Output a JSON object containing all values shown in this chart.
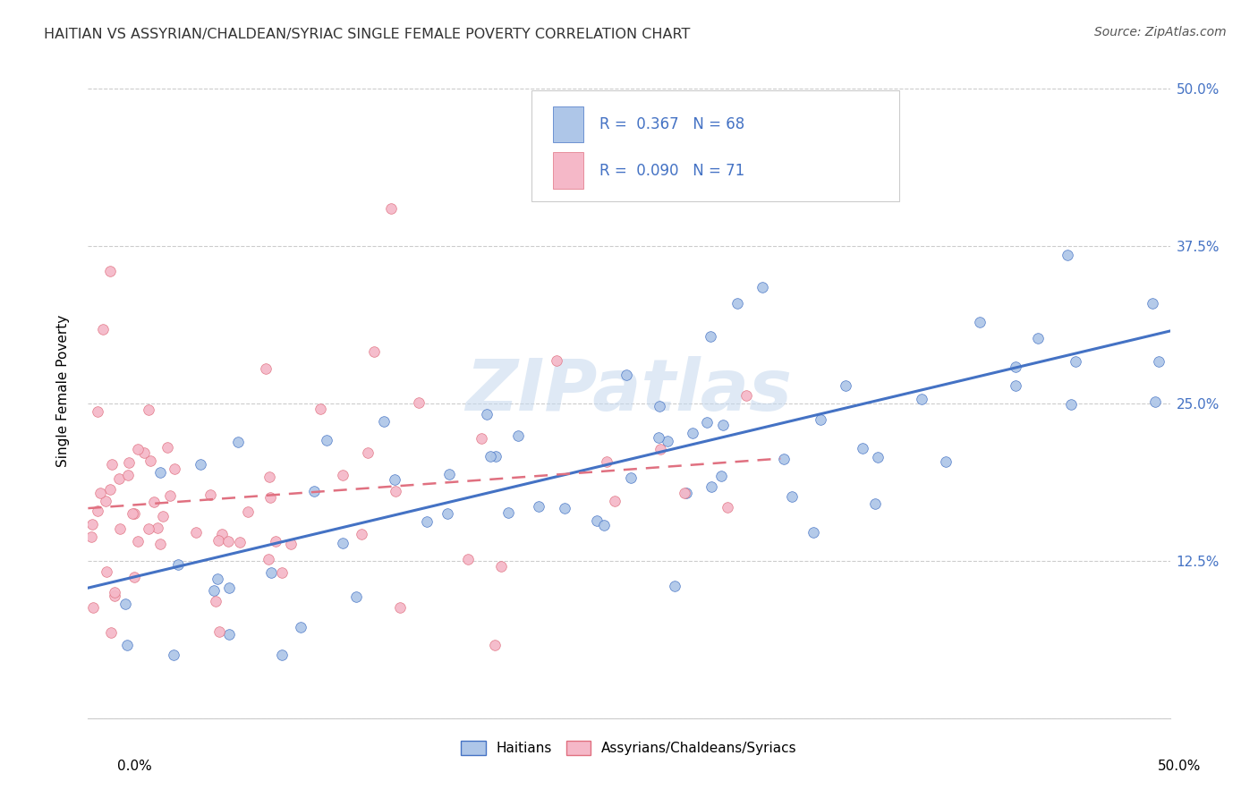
{
  "title": "HAITIAN VS ASSYRIAN/CHALDEAN/SYRIAC SINGLE FEMALE POVERTY CORRELATION CHART",
  "source": "Source: ZipAtlas.com",
  "ylabel": "Single Female Poverty",
  "legend_label1": "Haitians",
  "legend_label2": "Assyrians/Chaldeans/Syriacs",
  "r1": "0.367",
  "n1": "68",
  "r2": "0.090",
  "n2": "71",
  "color_blue": "#aec6e8",
  "color_pink": "#f5b8c8",
  "line_color_blue": "#4472c4",
  "line_color_pink": "#e07080",
  "text_color_blue": "#4472c4",
  "grid_color": "#cccccc",
  "watermark": "ZIPatlas",
  "xlim": [
    0,
    0.5
  ],
  "ylim": [
    0,
    0.52
  ],
  "yticks": [
    0.0,
    0.125,
    0.25,
    0.375,
    0.5
  ],
  "ytick_labels": [
    "",
    "12.5%",
    "25.0%",
    "37.5%",
    "50.0%"
  ],
  "xticks": [
    0.0,
    0.125,
    0.25,
    0.375,
    0.5
  ],
  "xtick_labels_bottom": [
    "0.0%",
    "",
    "",
    "",
    "50.0%"
  ]
}
